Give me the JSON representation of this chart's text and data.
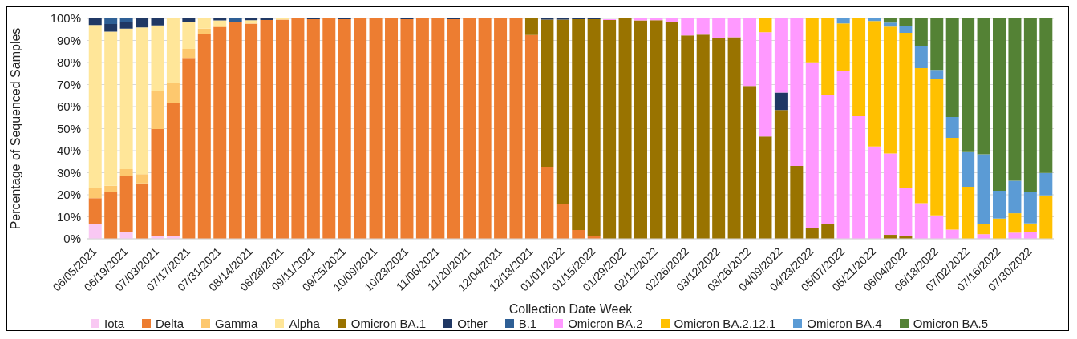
{
  "chart_data": {
    "type": "bar",
    "stacked": true,
    "xlabel": "Collection Date Week",
    "ylabel": "Percentage of Sequenced Samples",
    "categories": [
      "06/05/2021",
      null,
      "06/19/2021",
      null,
      "07/03/2021",
      null,
      "07/17/2021",
      null,
      "07/31/2021",
      null,
      "08/14/2021",
      null,
      "08/28/2021",
      null,
      "09/11/2021",
      null,
      "09/25/2021",
      null,
      "10/09/2021",
      null,
      "10/23/2021",
      null,
      "11/06/2021",
      null,
      "11/20/2021",
      null,
      "12/04/2021",
      null,
      "12/18/2021",
      null,
      "01/01/2022",
      null,
      "01/15/2022",
      null,
      "01/29/2022",
      null,
      "02/12/2022",
      null,
      "02/26/2022",
      null,
      "03/12/2022",
      null,
      "03/26/2022",
      null,
      "04/09/2022",
      null,
      "04/23/2022",
      null,
      "05/07/2022",
      null,
      "05/21/2022",
      null,
      "06/04/2022",
      null,
      "06/18/2022",
      null,
      "07/02/2022",
      null,
      "07/16/2022",
      null,
      "07/30/2022",
      null
    ],
    "series": [
      {
        "name": "Iota",
        "color": "#f9c8f3",
        "values": [
          6.9,
          0,
          3,
          0,
          1.5,
          1.5,
          0,
          0,
          0,
          0,
          0,
          0,
          0,
          0,
          0,
          0,
          0,
          0,
          0,
          0,
          0,
          0,
          0,
          0,
          0,
          0,
          0,
          0,
          0,
          0,
          0,
          0,
          0,
          0,
          0,
          0,
          0,
          0,
          0,
          0,
          0,
          0,
          0,
          0,
          0,
          0,
          0,
          0,
          0,
          0,
          0,
          0,
          0,
          0,
          0,
          0,
          0,
          0,
          0,
          0,
          0,
          0
        ]
      },
      {
        "name": "Delta",
        "color": "#ed7d31",
        "values": [
          11.6,
          21.5,
          25.5,
          25.2,
          48.3,
          60.2,
          82.1,
          93.1,
          96.1,
          98.2,
          97.6,
          99.3,
          99.5,
          100,
          99.6,
          100,
          99.6,
          100,
          100,
          100,
          99.6,
          100,
          100,
          99.6,
          100,
          100,
          100,
          100,
          92.5,
          32.7,
          15.8,
          4,
          1.4,
          null,
          0,
          0,
          0,
          0,
          0,
          0,
          0,
          0,
          0,
          0,
          0,
          0,
          0,
          0,
          0,
          0,
          0,
          0,
          0,
          0,
          0,
          0,
          0,
          0,
          0,
          0,
          0,
          0
        ]
      },
      {
        "name": "Gamma",
        "color": "#fdc86e",
        "values": [
          4.4,
          2.6,
          3.1,
          4.2,
          17.2,
          9.2,
          4.1,
          2.3,
          0.5,
          0,
          0,
          0,
          0,
          0,
          0,
          0,
          0,
          0,
          0,
          0,
          0,
          0,
          0,
          0,
          0,
          0,
          0,
          0,
          0,
          0,
          0,
          0,
          0,
          0,
          0,
          0,
          0,
          0,
          0,
          0,
          0,
          0,
          0,
          0,
          0,
          0,
          0,
          0,
          0,
          0,
          0,
          0,
          0,
          0,
          0,
          0,
          0,
          0,
          0,
          0,
          0,
          0
        ]
      },
      {
        "name": "Alpha",
        "color": "#ffe699",
        "values": [
          74.1,
          69.9,
          63.8,
          66.5,
          29.8,
          29.1,
          12.1,
          4.6,
          2.5,
          0,
          1.6,
          0,
          0.5,
          0,
          0,
          0,
          0,
          0,
          0,
          0,
          0,
          0,
          0,
          0,
          0,
          0,
          0,
          0,
          0,
          0,
          0,
          0,
          0,
          0,
          0,
          0,
          0,
          0,
          0,
          0,
          0,
          0,
          0,
          0,
          0,
          0,
          0,
          0,
          0,
          0,
          0,
          0,
          0,
          0,
          0,
          0,
          0,
          0,
          0,
          0,
          0,
          0
        ]
      },
      {
        "name": "Omicron BA.1",
        "color": "#997300",
        "values": [
          0,
          0,
          0,
          0,
          0,
          0,
          0,
          0,
          0,
          0,
          0,
          0,
          0,
          0,
          0,
          0,
          0,
          0,
          0,
          0,
          0,
          0,
          0,
          0,
          0,
          0,
          0,
          0,
          7.5,
          66.8,
          83.7,
          95.6,
          98.2,
          99.3,
          100,
          99.1,
          99.2,
          98.2,
          92.3,
          92.6,
          91,
          91.5,
          69.4,
          46.5,
          58.5,
          33.1,
          4.8,
          6.7,
          0,
          0,
          0,
          1.8,
          1.4,
          0,
          0,
          0,
          0,
          0,
          0,
          0,
          0,
          0
        ]
      },
      {
        "name": "Other",
        "color": "#203864",
        "values": [
          3,
          3.5,
          2.8,
          4.1,
          3.2,
          0,
          1.7,
          0,
          0.9,
          0,
          0.8,
          0.7,
          0,
          0,
          0.4,
          0,
          0.4,
          0,
          0,
          0,
          0.4,
          0,
          0,
          0.4,
          0,
          0,
          0,
          0,
          0,
          0.5,
          0.5,
          0.4,
          0.4,
          0,
          0,
          0,
          0,
          0,
          0,
          0,
          0,
          0,
          0,
          0,
          7.9,
          0,
          0,
          0,
          0,
          0,
          0,
          0,
          0,
          0,
          0,
          0,
          0,
          0,
          0,
          0,
          0,
          0
        ]
      },
      {
        "name": "B.1",
        "color": "#2e5f95",
        "values": [
          0,
          2.5,
          1.8,
          0,
          0,
          0,
          0,
          0,
          0,
          1.8,
          0,
          0,
          0,
          0,
          0,
          0,
          0,
          0,
          0,
          0,
          0,
          0,
          0,
          0,
          0,
          0,
          0,
          0,
          0,
          0,
          0,
          0,
          0,
          0,
          0,
          0,
          0,
          0,
          0,
          0,
          0,
          0,
          0,
          0,
          0,
          0,
          0,
          0,
          0,
          0,
          0,
          0,
          0,
          0,
          0,
          0,
          0,
          0,
          0,
          0,
          0,
          0
        ]
      },
      {
        "name": "Omicron BA.2",
        "color": "#ff99ff",
        "values": [
          0,
          0,
          0,
          0,
          0,
          0,
          0,
          0,
          0,
          0,
          0,
          0,
          0,
          0,
          0,
          0,
          0,
          0,
          0,
          0,
          0,
          0,
          0,
          0,
          0,
          0,
          0,
          0,
          0,
          0,
          0,
          0,
          0,
          0.3,
          0,
          0.9,
          0.8,
          1.8,
          7.7,
          7.4,
          9,
          8.5,
          30.6,
          47.2,
          33.6,
          66.9,
          75.3,
          58.6,
          76.2,
          55.6,
          41.9,
          36.9,
          21.8,
          16.2,
          10.6,
          4.2,
          0,
          2.1,
          0,
          2.8,
          3.2,
          0
        ]
      },
      {
        "name": "Omicron BA.2.12.1",
        "color": "#ffc000",
        "values": [
          0,
          0,
          0,
          0,
          0,
          0,
          0,
          0,
          0,
          0,
          0,
          0,
          0,
          0,
          0,
          0,
          0,
          0,
          0,
          0,
          0,
          0,
          0,
          0,
          0,
          0,
          0,
          0,
          0,
          0,
          0,
          0,
          0,
          0,
          0,
          0,
          0,
          0,
          0,
          0,
          0,
          0,
          0,
          6.3,
          0,
          0,
          19.9,
          34.7,
          21.5,
          44.4,
          56.9,
          57.6,
          70.3,
          61.3,
          61.8,
          41.6,
          23.6,
          4.6,
          9.2,
          8.8,
          3.8,
          19.7
        ]
      },
      {
        "name": "Omicron BA.4",
        "color": "#5b9bd5",
        "values": [
          0,
          0,
          0,
          0,
          0,
          0,
          0,
          0,
          0,
          0,
          0,
          0,
          0,
          0,
          0,
          0,
          0,
          0,
          0,
          0,
          0,
          0,
          0,
          0,
          0,
          0,
          0,
          0,
          0,
          0,
          0,
          0,
          0,
          0,
          0,
          0,
          0,
          0,
          0,
          0,
          0,
          0,
          0,
          0,
          0,
          0,
          0,
          0,
          2.3,
          0,
          1.2,
          1.8,
          3.2,
          10,
          4.2,
          9.5,
          15.8,
          31.7,
          12.6,
          14.8,
          14.1,
          10.2
        ]
      },
      {
        "name": "Omicron BA.5",
        "color": "#548235",
        "values": [
          0,
          0,
          0,
          0,
          0,
          0,
          0,
          0,
          0,
          0,
          0,
          0,
          0,
          0,
          0,
          0,
          0,
          0,
          0,
          0,
          0,
          0,
          0,
          0,
          0,
          0,
          0,
          0,
          0,
          0,
          0,
          0,
          0,
          0,
          0,
          0,
          0,
          0,
          0,
          0,
          0,
          0,
          0,
          0,
          0,
          0,
          0,
          0,
          0,
          0,
          0,
          1.9,
          3.3,
          12.5,
          23.4,
          44.7,
          60.6,
          61.6,
          78.2,
          73.6,
          78.9,
          70.1
        ]
      }
    ],
    "ylim": [
      0,
      100
    ],
    "yticks": [
      {
        "value": 0,
        "label": "0%"
      },
      {
        "value": 10,
        "label": "10%"
      },
      {
        "value": 20,
        "label": "20%"
      },
      {
        "value": 30,
        "label": "30%"
      },
      {
        "value": 40,
        "label": "40%"
      },
      {
        "value": 50,
        "label": "50%"
      },
      {
        "value": 60,
        "label": "60%"
      },
      {
        "value": 70,
        "label": "70%"
      },
      {
        "value": 80,
        "label": "80%"
      },
      {
        "value": 90,
        "label": "90%"
      },
      {
        "value": 100,
        "label": "100%"
      }
    ],
    "grid": "y",
    "legend": "bottom"
  }
}
